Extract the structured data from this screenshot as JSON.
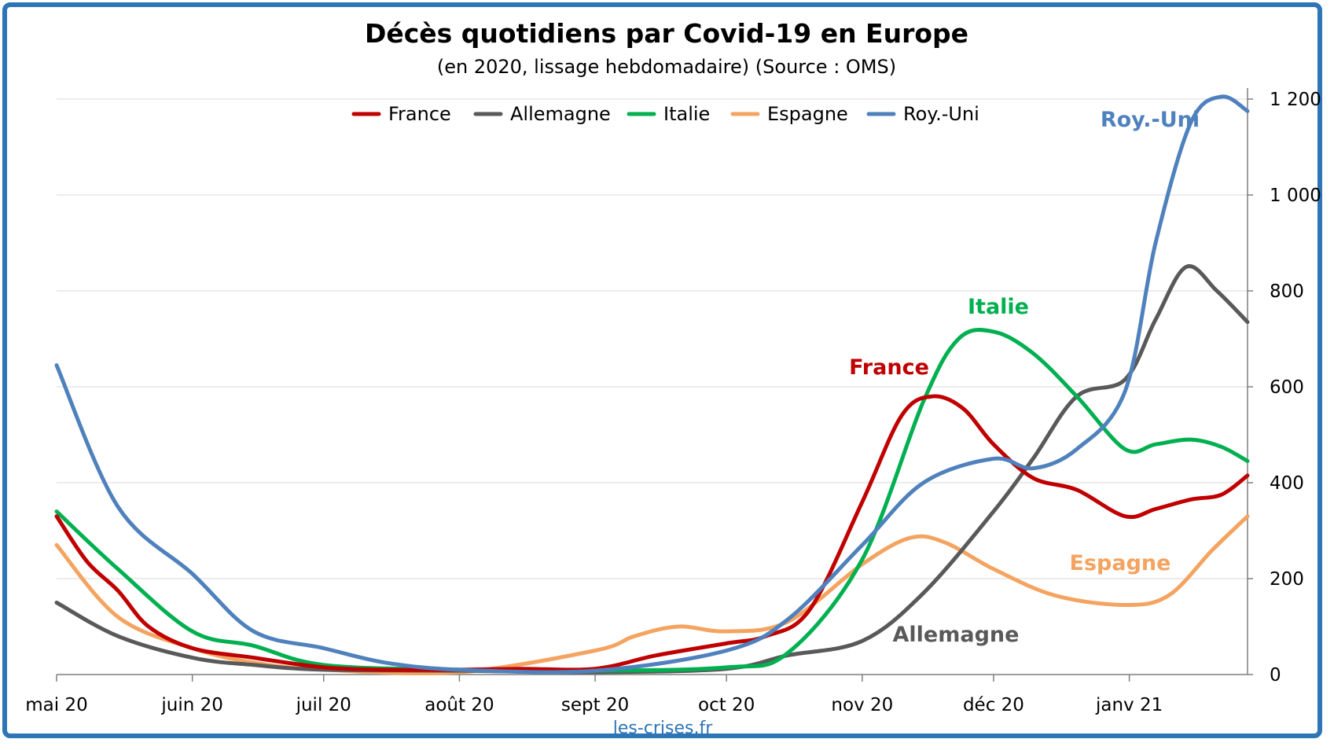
{
  "colors": {
    "France": "#c00000",
    "Allemagne": "#595959",
    "Italie": "#00b050",
    "Espagne": "#f4a460",
    "Roy.-Uni": "#4f81bd",
    "frame": "#2e75b6"
  },
  "chart_data": {
    "type": "line",
    "title": "Décès quotidiens par Covid-19 en Europe",
    "subtitle": "(en 2020, lissage hebdomadaire) (Source : OMS)",
    "source_label": "les-crises.fr",
    "xlabel": "",
    "ylabel": "",
    "ylim": [
      0,
      1200
    ],
    "y_ticks": [
      0,
      200,
      400,
      600,
      800,
      1000,
      1200
    ],
    "y_tick_labels": [
      "0",
      "200",
      "400",
      "600",
      "800",
      "1 000",
      "1 200"
    ],
    "y_axis_side": "right",
    "grid": true,
    "legend": "top-center",
    "x_ticks": [
      "2020-05-01",
      "2020-06-01",
      "2020-07-01",
      "2020-08-01",
      "2020-09-01",
      "2020-10-01",
      "2020-11-01",
      "2020-12-01",
      "2021-01-01"
    ],
    "x_tick_labels": [
      "mai 20",
      "juin 20",
      "juil 20",
      "août 20",
      "sept 20",
      "oct 20",
      "nov 20",
      "déc 20",
      "janv 21"
    ],
    "x_range": [
      "2020-05-01",
      "2021-01-28"
    ],
    "series": [
      {
        "name": "France",
        "annotation": "France",
        "x": [
          "2020-05-01",
          "2020-05-08",
          "2020-05-15",
          "2020-05-22",
          "2020-06-01",
          "2020-06-15",
          "2020-07-01",
          "2020-07-15",
          "2020-08-01",
          "2020-08-15",
          "2020-09-01",
          "2020-09-15",
          "2020-10-01",
          "2020-10-10",
          "2020-10-20",
          "2020-11-01",
          "2020-11-10",
          "2020-11-17",
          "2020-11-24",
          "2020-12-01",
          "2020-12-10",
          "2020-12-20",
          "2020-12-31",
          "2021-01-07",
          "2021-01-15",
          "2021-01-22",
          "2021-01-28"
        ],
        "values": [
          330,
          235,
          175,
          100,
          55,
          35,
          15,
          10,
          10,
          12,
          12,
          40,
          65,
          80,
          135,
          360,
          540,
          580,
          555,
          480,
          410,
          385,
          330,
          345,
          365,
          375,
          415
        ]
      },
      {
        "name": "Allemagne",
        "annotation": "Allemagne",
        "x": [
          "2020-05-01",
          "2020-05-15",
          "2020-06-01",
          "2020-06-15",
          "2020-07-01",
          "2020-08-01",
          "2020-09-01",
          "2020-10-01",
          "2020-10-15",
          "2020-11-01",
          "2020-11-15",
          "2020-12-01",
          "2020-12-10",
          "2020-12-20",
          "2020-12-31",
          "2021-01-07",
          "2021-01-14",
          "2021-01-21",
          "2021-01-28"
        ],
        "values": [
          150,
          80,
          35,
          20,
          10,
          8,
          5,
          12,
          40,
          70,
          170,
          340,
          450,
          580,
          615,
          740,
          850,
          800,
          735
        ]
      },
      {
        "name": "Italie",
        "annotation": "Italie",
        "x": [
          "2020-05-01",
          "2020-05-15",
          "2020-06-01",
          "2020-06-15",
          "2020-07-01",
          "2020-08-01",
          "2020-09-01",
          "2020-10-01",
          "2020-10-15",
          "2020-11-01",
          "2020-11-15",
          "2020-11-23",
          "2020-12-01",
          "2020-12-10",
          "2020-12-20",
          "2020-12-31",
          "2021-01-07",
          "2021-01-15",
          "2021-01-22",
          "2021-01-28"
        ],
        "values": [
          340,
          220,
          90,
          60,
          20,
          10,
          8,
          15,
          45,
          240,
          570,
          700,
          715,
          670,
          580,
          470,
          480,
          490,
          475,
          445
        ]
      },
      {
        "name": "Espagne",
        "annotation": "Espagne",
        "x": [
          "2020-05-01",
          "2020-05-15",
          "2020-06-01",
          "2020-06-15",
          "2020-07-01",
          "2020-08-01",
          "2020-09-01",
          "2020-09-10",
          "2020-09-20",
          "2020-10-01",
          "2020-10-15",
          "2020-11-01",
          "2020-11-12",
          "2020-11-20",
          "2020-12-01",
          "2020-12-15",
          "2020-12-31",
          "2021-01-10",
          "2021-01-20",
          "2021-01-28"
        ],
        "values": [
          270,
          120,
          55,
          25,
          10,
          5,
          50,
          80,
          100,
          90,
          110,
          230,
          285,
          275,
          220,
          165,
          145,
          165,
          260,
          330
        ]
      },
      {
        "name": "Roy.-Uni",
        "annotation": "Roy.-Uni",
        "x": [
          "2020-05-01",
          "2020-05-15",
          "2020-06-01",
          "2020-06-15",
          "2020-07-01",
          "2020-07-15",
          "2020-08-01",
          "2020-09-01",
          "2020-10-01",
          "2020-10-15",
          "2020-11-01",
          "2020-11-15",
          "2020-12-01",
          "2020-12-10",
          "2020-12-20",
          "2020-12-31",
          "2021-01-07",
          "2021-01-15",
          "2021-01-22",
          "2021-01-28"
        ],
        "values": [
          645,
          350,
          210,
          90,
          55,
          25,
          10,
          8,
          50,
          115,
          270,
          400,
          450,
          430,
          470,
          590,
          900,
          1150,
          1205,
          1175
        ]
      }
    ]
  }
}
